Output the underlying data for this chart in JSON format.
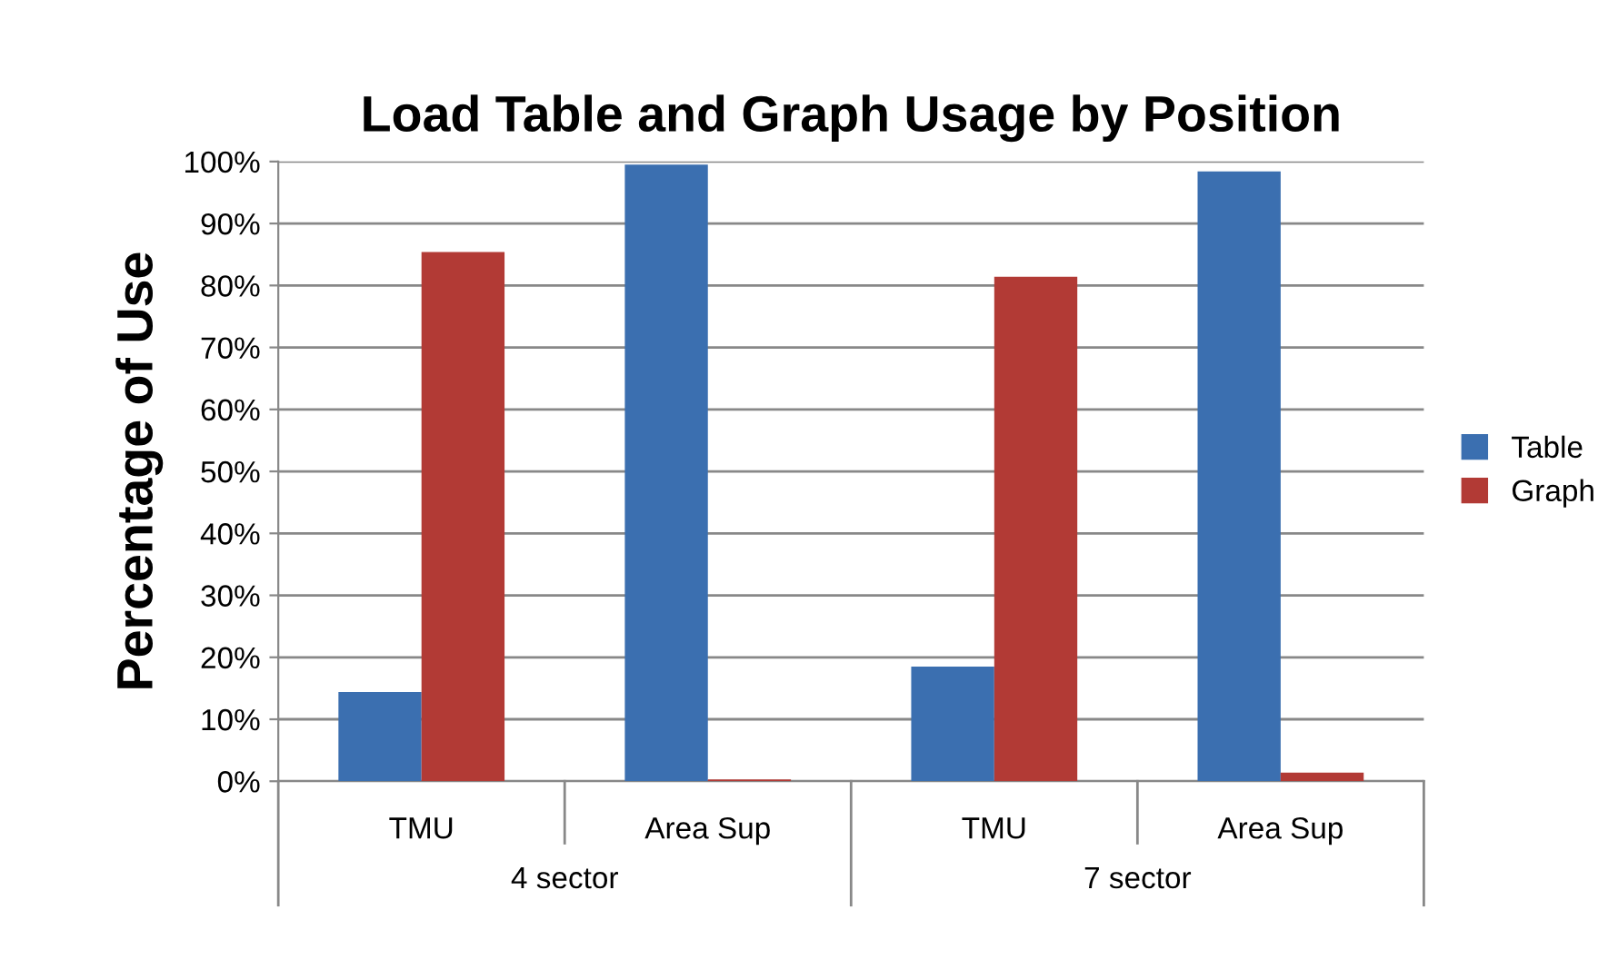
{
  "chart_data": {
    "type": "bar",
    "title": "Load Table and Graph Usage by Position",
    "ylabel": "Percentage of Use",
    "categories": [
      "TMU",
      "Area Sup",
      "TMU",
      "Area Sup"
    ],
    "annotations": [
      "4 sector",
      "7 sector"
    ],
    "series": [
      {
        "name": "Table",
        "color": "#3b6fb0",
        "values": [
          14.4,
          99.5,
          18.5,
          98.4
        ]
      },
      {
        "name": "Graph",
        "color": "#b23a35",
        "values": [
          85.4,
          0.3,
          81.4,
          1.4
        ]
      }
    ],
    "ylim": [
      0,
      100
    ],
    "yticks": [
      {
        "value": 0,
        "label": "0%"
      },
      {
        "value": 10,
        "label": "10%"
      },
      {
        "value": 20,
        "label": "20%"
      },
      {
        "value": 30,
        "label": "30%"
      },
      {
        "value": 40,
        "label": "40%"
      },
      {
        "value": 50,
        "label": "50%"
      },
      {
        "value": 60,
        "label": "60%"
      },
      {
        "value": 70,
        "label": "70%"
      },
      {
        "value": 80,
        "label": "80%"
      },
      {
        "value": 90,
        "label": "90%"
      },
      {
        "value": 100,
        "label": "100%"
      }
    ],
    "grid": "y",
    "legend": "right"
  }
}
